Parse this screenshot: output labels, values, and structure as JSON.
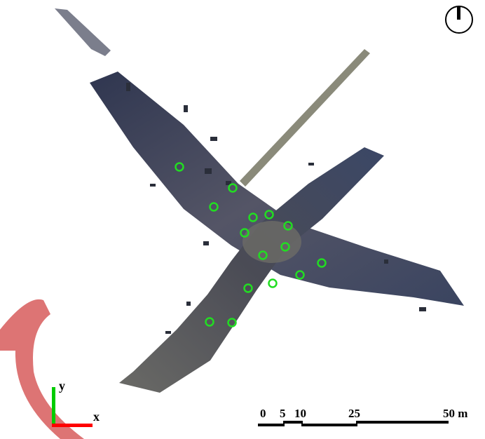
{
  "map": {
    "north_arrow_icon": "north-arrow-icon",
    "marker_color": "#22dd22",
    "road_color": "#3e4356",
    "markers": [
      {
        "id": 1
      },
      {
        "id": 2
      },
      {
        "id": 3
      },
      {
        "id": 4
      },
      {
        "id": 5
      },
      {
        "id": 6
      },
      {
        "id": 7
      },
      {
        "id": 8
      },
      {
        "id": 9
      },
      {
        "id": 10
      },
      {
        "id": 11
      },
      {
        "id": 12
      },
      {
        "id": 13
      },
      {
        "id": 14
      },
      {
        "id": 15
      },
      {
        "id": 16
      }
    ]
  },
  "axes": {
    "x_label": "x",
    "y_label": "y",
    "x_color": "#ff0000",
    "y_color": "#00cc00"
  },
  "scale_bar": {
    "labels": [
      "0",
      "5",
      "10",
      "25",
      "50 m"
    ]
  }
}
